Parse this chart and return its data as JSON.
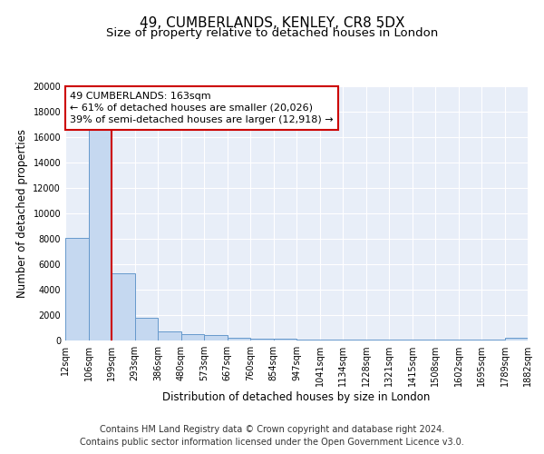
{
  "title": "49, CUMBERLANDS, KENLEY, CR8 5DX",
  "subtitle": "Size of property relative to detached houses in London",
  "xlabel": "Distribution of detached houses by size in London",
  "ylabel": "Number of detached properties",
  "tick_labels": [
    "12sqm",
    "106sqm",
    "199sqm",
    "293sqm",
    "386sqm",
    "480sqm",
    "573sqm",
    "667sqm",
    "760sqm",
    "854sqm",
    "947sqm",
    "1041sqm",
    "1134sqm",
    "1228sqm",
    "1321sqm",
    "1415sqm",
    "1508sqm",
    "1602sqm",
    "1695sqm",
    "1789sqm",
    "1882sqm"
  ],
  "bar_values": [
    8100,
    16600,
    5300,
    1800,
    700,
    500,
    400,
    200,
    150,
    120,
    100,
    80,
    60,
    55,
    50,
    50,
    90,
    50,
    50,
    200
  ],
  "bar_color": "#c5d8f0",
  "bar_edge_color": "#6699cc",
  "background_color": "#e8eef8",
  "grid_color": "#ffffff",
  "annotation_text": "49 CUMBERLANDS: 163sqm\n← 61% of detached houses are smaller (20,026)\n39% of semi-detached houses are larger (12,918) →",
  "annotation_box_color": "#ffffff",
  "annotation_box_edge": "#cc0000",
  "ylim": [
    0,
    20000
  ],
  "yticks": [
    0,
    2000,
    4000,
    6000,
    8000,
    10000,
    12000,
    14000,
    16000,
    18000,
    20000
  ],
  "footer": "Contains HM Land Registry data © Crown copyright and database right 2024.\nContains public sector information licensed under the Open Government Licence v3.0.",
  "title_fontsize": 11,
  "subtitle_fontsize": 9.5,
  "label_fontsize": 8.5,
  "tick_fontsize": 7,
  "annotation_fontsize": 8,
  "footer_fontsize": 7
}
